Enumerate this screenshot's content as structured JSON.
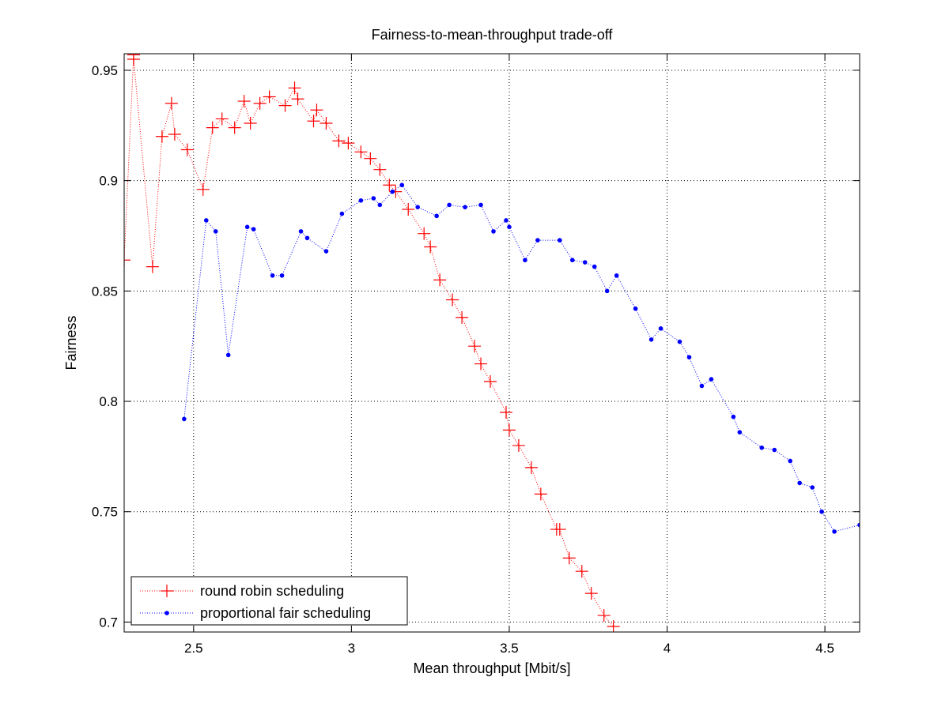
{
  "chart_data": {
    "type": "line",
    "title": "Fairness-to-mean-throughput trade-off",
    "xlabel": "Mean throughput [Mbit/s]",
    "ylabel": "Fairness",
    "xlim": [
      2.28,
      4.61
    ],
    "ylim": [
      0.6955,
      0.9575
    ],
    "xticks": [
      2.5,
      3,
      3.5,
      4,
      4.5
    ],
    "xtick_labels": [
      "2.5",
      "3",
      "3.5",
      "4",
      "4.5"
    ],
    "yticks": [
      0.7,
      0.75,
      0.8,
      0.85,
      0.9,
      0.95
    ],
    "ytick_labels": [
      "0.7",
      "0.75",
      "0.8",
      "0.85",
      "0.9",
      "0.95"
    ],
    "grid": true,
    "legend_position": "bottom-left",
    "series": [
      {
        "name": "round robin scheduling",
        "color": "#ff0000",
        "marker": "plus",
        "line_style": "dotted",
        "points": [
          [
            2.28,
            0.864
          ],
          [
            2.31,
            0.957
          ],
          [
            2.31,
            0.955
          ],
          [
            2.37,
            0.861
          ],
          [
            2.4,
            0.92
          ],
          [
            2.43,
            0.935
          ],
          [
            2.44,
            0.921
          ],
          [
            2.48,
            0.914
          ],
          [
            2.53,
            0.896
          ],
          [
            2.56,
            0.924
          ],
          [
            2.59,
            0.928
          ],
          [
            2.63,
            0.924
          ],
          [
            2.66,
            0.936
          ],
          [
            2.68,
            0.926
          ],
          [
            2.71,
            0.935
          ],
          [
            2.74,
            0.938
          ],
          [
            2.79,
            0.934
          ],
          [
            2.82,
            0.942
          ],
          [
            2.83,
            0.937
          ],
          [
            2.88,
            0.927
          ],
          [
            2.89,
            0.932
          ],
          [
            2.92,
            0.926
          ],
          [
            2.96,
            0.918
          ],
          [
            2.99,
            0.917
          ],
          [
            3.03,
            0.913
          ],
          [
            3.06,
            0.91
          ],
          [
            3.09,
            0.905
          ],
          [
            3.12,
            0.898
          ],
          [
            3.14,
            0.895
          ],
          [
            3.18,
            0.887
          ],
          [
            3.23,
            0.876
          ],
          [
            3.25,
            0.87
          ],
          [
            3.28,
            0.855
          ],
          [
            3.32,
            0.846
          ],
          [
            3.35,
            0.838
          ],
          [
            3.39,
            0.825
          ],
          [
            3.41,
            0.817
          ],
          [
            3.44,
            0.809
          ],
          [
            3.49,
            0.795
          ],
          [
            3.5,
            0.787
          ],
          [
            3.53,
            0.78
          ],
          [
            3.57,
            0.77
          ],
          [
            3.6,
            0.758
          ],
          [
            3.65,
            0.742
          ],
          [
            3.66,
            0.742
          ],
          [
            3.69,
            0.729
          ],
          [
            3.73,
            0.723
          ],
          [
            3.76,
            0.713
          ],
          [
            3.8,
            0.703
          ],
          [
            3.83,
            0.698
          ]
        ]
      },
      {
        "name": "proportional fair scheduling",
        "color": "#0000ff",
        "marker": "dot",
        "line_style": "dotted",
        "points": [
          [
            2.47,
            0.792
          ],
          [
            2.54,
            0.882
          ],
          [
            2.57,
            0.877
          ],
          [
            2.61,
            0.821
          ],
          [
            2.67,
            0.879
          ],
          [
            2.69,
            0.878
          ],
          [
            2.75,
            0.857
          ],
          [
            2.78,
            0.857
          ],
          [
            2.84,
            0.877
          ],
          [
            2.86,
            0.874
          ],
          [
            2.92,
            0.868
          ],
          [
            2.97,
            0.885
          ],
          [
            3.03,
            0.891
          ],
          [
            3.07,
            0.892
          ],
          [
            3.09,
            0.889
          ],
          [
            3.13,
            0.895
          ],
          [
            3.16,
            0.898
          ],
          [
            3.21,
            0.888
          ],
          [
            3.27,
            0.884
          ],
          [
            3.31,
            0.889
          ],
          [
            3.36,
            0.888
          ],
          [
            3.41,
            0.889
          ],
          [
            3.45,
            0.877
          ],
          [
            3.49,
            0.882
          ],
          [
            3.5,
            0.879
          ],
          [
            3.55,
            0.864
          ],
          [
            3.59,
            0.873
          ],
          [
            3.66,
            0.873
          ],
          [
            3.7,
            0.864
          ],
          [
            3.74,
            0.863
          ],
          [
            3.77,
            0.861
          ],
          [
            3.81,
            0.85
          ],
          [
            3.84,
            0.857
          ],
          [
            3.9,
            0.842
          ],
          [
            3.95,
            0.828
          ],
          [
            3.98,
            0.833
          ],
          [
            4.04,
            0.827
          ],
          [
            4.07,
            0.82
          ],
          [
            4.11,
            0.807
          ],
          [
            4.14,
            0.81
          ],
          [
            4.21,
            0.793
          ],
          [
            4.23,
            0.786
          ],
          [
            4.3,
            0.779
          ],
          [
            4.34,
            0.778
          ],
          [
            4.39,
            0.773
          ],
          [
            4.42,
            0.763
          ],
          [
            4.46,
            0.761
          ],
          [
            4.49,
            0.75
          ],
          [
            4.53,
            0.741
          ],
          [
            4.61,
            0.744
          ]
        ]
      }
    ]
  }
}
